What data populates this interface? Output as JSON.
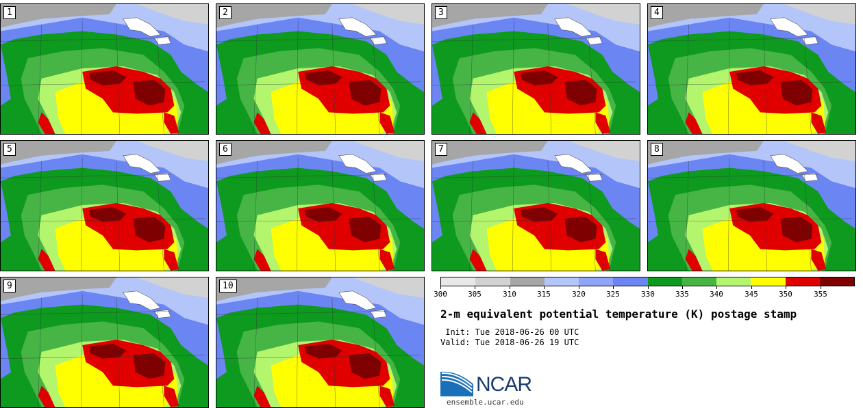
{
  "panels": [
    "1",
    "2",
    "3",
    "4",
    "5",
    "6",
    "7",
    "8",
    "9",
    "10"
  ],
  "colorbar": {
    "colors": [
      "#e8e8e8",
      "#d2d2d2",
      "#a6a6a6",
      "#b4c5fa",
      "#8fa5f7",
      "#6b85f2",
      "#0d9a1f",
      "#46b545",
      "#b3f56d",
      "#ffff00",
      "#e00000",
      "#7f0000"
    ],
    "ticks": [
      "300",
      "305",
      "310",
      "315",
      "320",
      "325",
      "330",
      "335",
      "340",
      "345",
      "350",
      "355"
    ]
  },
  "title": "2-m equivalent potential temperature (K) postage stamp",
  "init": " Init: Tue 2018-06-26 00 UTC",
  "valid": "Valid: Tue 2018-06-26 19 UTC",
  "logo": "NCAR",
  "site": "ensemble.ucar.edu"
}
